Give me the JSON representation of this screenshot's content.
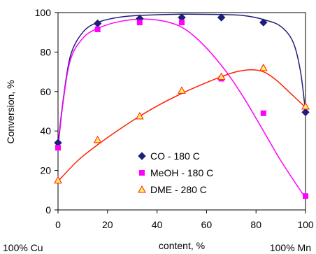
{
  "chart_data": {
    "type": "scatter",
    "title": "",
    "xlabel": "content, %",
    "ylabel": "Conversion, %",
    "xlim": [
      0,
      100
    ],
    "ylim": [
      0,
      100
    ],
    "xticks": [
      0,
      20,
      40,
      60,
      80,
      100
    ],
    "yticks": [
      0,
      20,
      40,
      60,
      80,
      100
    ],
    "grid": false,
    "legend_position": "center",
    "extra_labels": {
      "left": "100% Cu",
      "right": "100% Mn"
    },
    "series": [
      {
        "name": "CO - 180 C",
        "marker": "diamond",
        "color": "#1f1f7a",
        "x": [
          0,
          16,
          33,
          50,
          66,
          83,
          100
        ],
        "y": [
          34,
          94.5,
          97,
          97.5,
          97.5,
          95,
          49.5
        ],
        "fit": [
          [
            0,
            33
          ],
          [
            2,
            55
          ],
          [
            5,
            78
          ],
          [
            10,
            90
          ],
          [
            16,
            95
          ],
          [
            25,
            97.7
          ],
          [
            35,
            98.7
          ],
          [
            50,
            99.2
          ],
          [
            65,
            99
          ],
          [
            75,
            98.5
          ],
          [
            83,
            96.5
          ],
          [
            90,
            93
          ],
          [
            95,
            85
          ],
          [
            98,
            70
          ],
          [
            100,
            49.5
          ]
        ]
      },
      {
        "name": "MeOH  - 180 C",
        "marker": "square",
        "color": "#ff00ff",
        "x": [
          0,
          16,
          33,
          50,
          66,
          83,
          100
        ],
        "y": [
          31.5,
          91.5,
          95,
          95,
          66.5,
          49,
          7
        ],
        "fit": [
          [
            0,
            31
          ],
          [
            2,
            54
          ],
          [
            5,
            76
          ],
          [
            10,
            87
          ],
          [
            16,
            92
          ],
          [
            25,
            95.5
          ],
          [
            35,
            96.7
          ],
          [
            45,
            95
          ],
          [
            52,
            91
          ],
          [
            60,
            82
          ],
          [
            68,
            70
          ],
          [
            75,
            57
          ],
          [
            83,
            40
          ],
          [
            90,
            25
          ],
          [
            100,
            6
          ]
        ]
      },
      {
        "name": "DME - 280 C",
        "marker": "triangle",
        "color": "#ff2000",
        "x": [
          0,
          16,
          33,
          50,
          66,
          83,
          100
        ],
        "y": [
          15,
          35.5,
          47.5,
          60.5,
          67.5,
          72,
          52.5
        ],
        "fit": [
          [
            0,
            14.5
          ],
          [
            8,
            25
          ],
          [
            16,
            33
          ],
          [
            25,
            41
          ],
          [
            33,
            47.5
          ],
          [
            42,
            54
          ],
          [
            50,
            59
          ],
          [
            58,
            63.5
          ],
          [
            66,
            67.5
          ],
          [
            72,
            70
          ],
          [
            78,
            71
          ],
          [
            83,
            70
          ],
          [
            88,
            66
          ],
          [
            94,
            59
          ],
          [
            100,
            52
          ]
        ]
      }
    ]
  }
}
